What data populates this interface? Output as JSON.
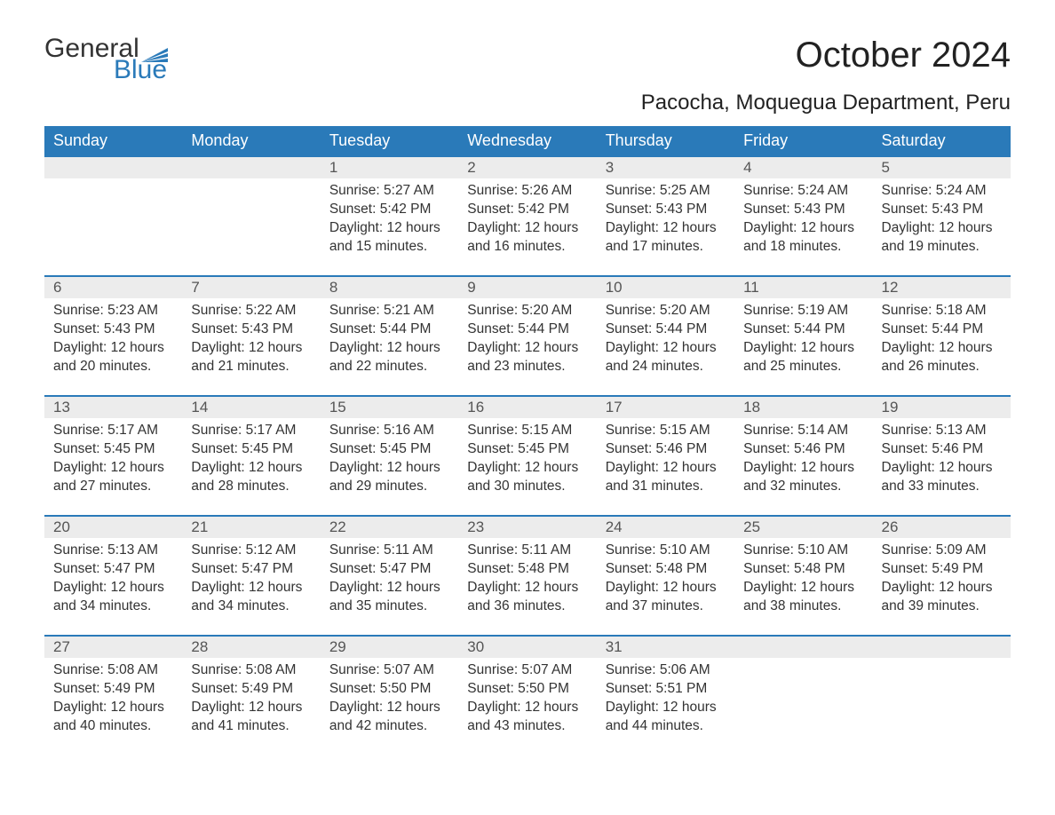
{
  "brand": {
    "word1": "General",
    "word2": "Blue",
    "accent_color": "#2a7ab9",
    "text_color": "#333333"
  },
  "title": "October 2024",
  "location": "Pacocha, Moquegua Department, Peru",
  "colors": {
    "header_bg": "#2a7ab9",
    "header_text": "#ffffff",
    "daynum_bg": "#ececec",
    "row_divider": "#2a7ab9",
    "body_text": "#333333",
    "page_bg": "#ffffff"
  },
  "typography": {
    "month_title_fontsize": 40,
    "location_fontsize": 24,
    "header_fontsize": 18,
    "daynum_fontsize": 17,
    "cell_fontsize": 15.5
  },
  "day_headers": [
    "Sunday",
    "Monday",
    "Tuesday",
    "Wednesday",
    "Thursday",
    "Friday",
    "Saturday"
  ],
  "weeks": [
    [
      null,
      null,
      {
        "n": "1",
        "sunrise": "5:27 AM",
        "sunset": "5:42 PM",
        "daylight": "12 hours and 15 minutes."
      },
      {
        "n": "2",
        "sunrise": "5:26 AM",
        "sunset": "5:42 PM",
        "daylight": "12 hours and 16 minutes."
      },
      {
        "n": "3",
        "sunrise": "5:25 AM",
        "sunset": "5:43 PM",
        "daylight": "12 hours and 17 minutes."
      },
      {
        "n": "4",
        "sunrise": "5:24 AM",
        "sunset": "5:43 PM",
        "daylight": "12 hours and 18 minutes."
      },
      {
        "n": "5",
        "sunrise": "5:24 AM",
        "sunset": "5:43 PM",
        "daylight": "12 hours and 19 minutes."
      }
    ],
    [
      {
        "n": "6",
        "sunrise": "5:23 AM",
        "sunset": "5:43 PM",
        "daylight": "12 hours and 20 minutes."
      },
      {
        "n": "7",
        "sunrise": "5:22 AM",
        "sunset": "5:43 PM",
        "daylight": "12 hours and 21 minutes."
      },
      {
        "n": "8",
        "sunrise": "5:21 AM",
        "sunset": "5:44 PM",
        "daylight": "12 hours and 22 minutes."
      },
      {
        "n": "9",
        "sunrise": "5:20 AM",
        "sunset": "5:44 PM",
        "daylight": "12 hours and 23 minutes."
      },
      {
        "n": "10",
        "sunrise": "5:20 AM",
        "sunset": "5:44 PM",
        "daylight": "12 hours and 24 minutes."
      },
      {
        "n": "11",
        "sunrise": "5:19 AM",
        "sunset": "5:44 PM",
        "daylight": "12 hours and 25 minutes."
      },
      {
        "n": "12",
        "sunrise": "5:18 AM",
        "sunset": "5:44 PM",
        "daylight": "12 hours and 26 minutes."
      }
    ],
    [
      {
        "n": "13",
        "sunrise": "5:17 AM",
        "sunset": "5:45 PM",
        "daylight": "12 hours and 27 minutes."
      },
      {
        "n": "14",
        "sunrise": "5:17 AM",
        "sunset": "5:45 PM",
        "daylight": "12 hours and 28 minutes."
      },
      {
        "n": "15",
        "sunrise": "5:16 AM",
        "sunset": "5:45 PM",
        "daylight": "12 hours and 29 minutes."
      },
      {
        "n": "16",
        "sunrise": "5:15 AM",
        "sunset": "5:45 PM",
        "daylight": "12 hours and 30 minutes."
      },
      {
        "n": "17",
        "sunrise": "5:15 AM",
        "sunset": "5:46 PM",
        "daylight": "12 hours and 31 minutes."
      },
      {
        "n": "18",
        "sunrise": "5:14 AM",
        "sunset": "5:46 PM",
        "daylight": "12 hours and 32 minutes."
      },
      {
        "n": "19",
        "sunrise": "5:13 AM",
        "sunset": "5:46 PM",
        "daylight": "12 hours and 33 minutes."
      }
    ],
    [
      {
        "n": "20",
        "sunrise": "5:13 AM",
        "sunset": "5:47 PM",
        "daylight": "12 hours and 34 minutes."
      },
      {
        "n": "21",
        "sunrise": "5:12 AM",
        "sunset": "5:47 PM",
        "daylight": "12 hours and 34 minutes."
      },
      {
        "n": "22",
        "sunrise": "5:11 AM",
        "sunset": "5:47 PM",
        "daylight": "12 hours and 35 minutes."
      },
      {
        "n": "23",
        "sunrise": "5:11 AM",
        "sunset": "5:48 PM",
        "daylight": "12 hours and 36 minutes."
      },
      {
        "n": "24",
        "sunrise": "5:10 AM",
        "sunset": "5:48 PM",
        "daylight": "12 hours and 37 minutes."
      },
      {
        "n": "25",
        "sunrise": "5:10 AM",
        "sunset": "5:48 PM",
        "daylight": "12 hours and 38 minutes."
      },
      {
        "n": "26",
        "sunrise": "5:09 AM",
        "sunset": "5:49 PM",
        "daylight": "12 hours and 39 minutes."
      }
    ],
    [
      {
        "n": "27",
        "sunrise": "5:08 AM",
        "sunset": "5:49 PM",
        "daylight": "12 hours and 40 minutes."
      },
      {
        "n": "28",
        "sunrise": "5:08 AM",
        "sunset": "5:49 PM",
        "daylight": "12 hours and 41 minutes."
      },
      {
        "n": "29",
        "sunrise": "5:07 AM",
        "sunset": "5:50 PM",
        "daylight": "12 hours and 42 minutes."
      },
      {
        "n": "30",
        "sunrise": "5:07 AM",
        "sunset": "5:50 PM",
        "daylight": "12 hours and 43 minutes."
      },
      {
        "n": "31",
        "sunrise": "5:06 AM",
        "sunset": "5:51 PM",
        "daylight": "12 hours and 44 minutes."
      },
      null,
      null
    ]
  ],
  "labels": {
    "sunrise": "Sunrise: ",
    "sunset": "Sunset: ",
    "daylight": "Daylight: "
  }
}
